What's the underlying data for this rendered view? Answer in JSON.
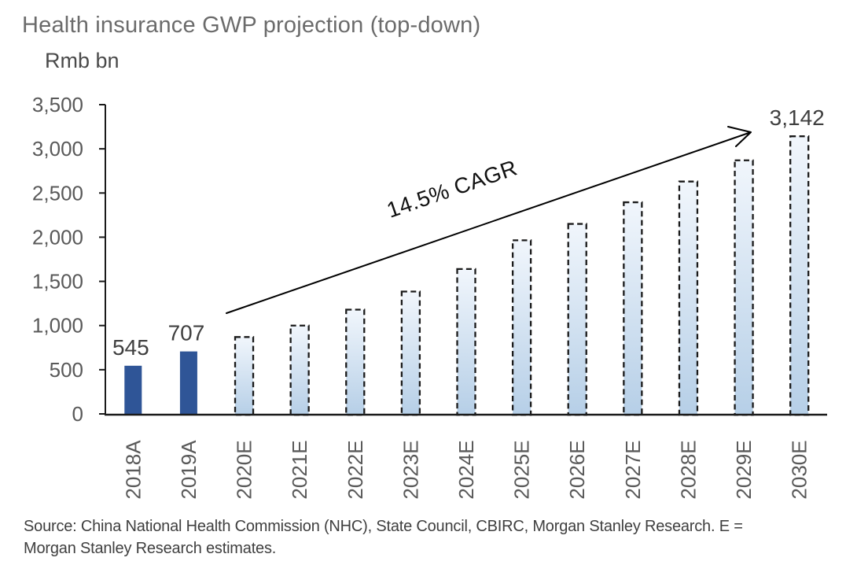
{
  "header": {
    "title": "Health insurance GWP projection (top-down)",
    "unit_label": "Rmb bn"
  },
  "annotation": {
    "cagr_text": "14.5% CAGR"
  },
  "footer": {
    "source_line1": "Source: China National Health Commission (NHC), State Council, CBIRC, Morgan Stanley Research. E =",
    "source_line2": "Morgan Stanley Research estimates."
  },
  "colors": {
    "title_text": "#6b6b6b",
    "unit_text": "#4a4a4a",
    "axis_text": "#595959",
    "value_label_text": "#3f3f3f",
    "axis_line": "#1a1a1a",
    "actual_bar": "#2f5597",
    "estimate_bar_top": "#f1f6fc",
    "estimate_bar_bottom": "#b6cfe7",
    "estimate_bar_border": "#1a1a1a",
    "arrow": "#000000"
  },
  "chart_data": {
    "type": "bar",
    "title": "Health insurance GWP projection (top-down)",
    "ylabel": "Rmb bn",
    "ylim": [
      0,
      3500
    ],
    "ytick_step": 500,
    "ytick_labels": [
      "0",
      "500",
      "1,000",
      "1,500",
      "2,000",
      "2,500",
      "3,000",
      "3,500"
    ],
    "grid": false,
    "legend": false,
    "categories": [
      "2018A",
      "2019A",
      "2020E",
      "2021E",
      "2022E",
      "2023E",
      "2024E",
      "2025E",
      "2026E",
      "2027E",
      "2028E",
      "2029E",
      "2030E"
    ],
    "values": [
      545,
      707,
      870,
      1000,
      1180,
      1385,
      1640,
      1965,
      2150,
      2395,
      2630,
      2870,
      3142
    ],
    "bar_styles": [
      "actual",
      "actual",
      "estimate",
      "estimate",
      "estimate",
      "estimate",
      "estimate",
      "estimate",
      "estimate",
      "estimate",
      "estimate",
      "estimate",
      "estimate"
    ],
    "data_labels": [
      "545",
      "707",
      "",
      "",
      "",
      "",
      "",
      "",
      "",
      "",
      "",
      "",
      "3,142"
    ],
    "annotation": {
      "text": "14.5% CAGR"
    }
  }
}
